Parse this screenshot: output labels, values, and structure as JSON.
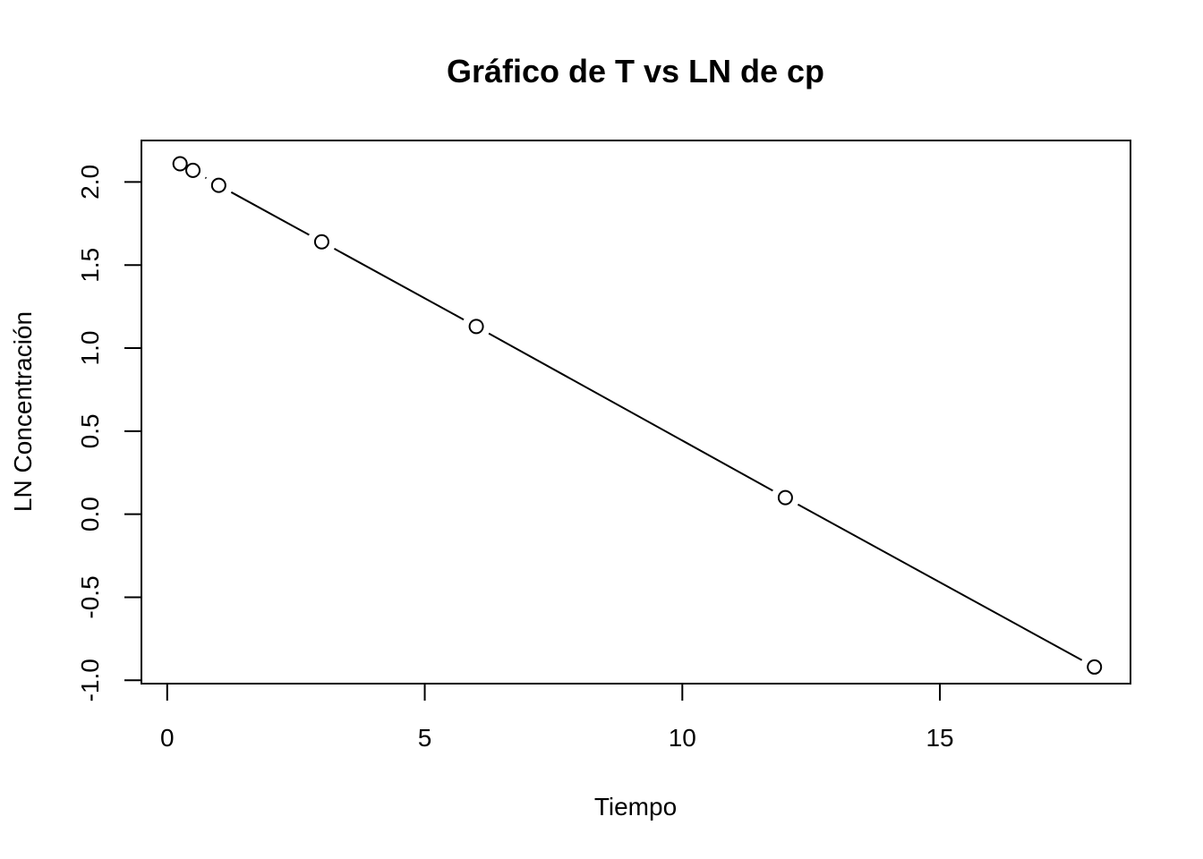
{
  "chart_data": {
    "type": "line",
    "title": "Gráfico de T vs LN de cp",
    "xlabel": "Tiempo",
    "ylabel": "LN Concentración",
    "xlim": [
      -0.5,
      18.7
    ],
    "ylim": [
      -1.02,
      2.25
    ],
    "xticks": [
      0,
      5,
      10,
      15
    ],
    "xtick_labels": [
      "0",
      "5",
      "10",
      "15"
    ],
    "yticks": [
      -1.0,
      -0.5,
      0.0,
      0.5,
      1.0,
      1.5,
      2.0
    ],
    "ytick_labels": [
      "-1.0",
      "-0.5",
      "0.0",
      "0.5",
      "1.0",
      "1.5",
      "2.0"
    ],
    "grid": false,
    "marker": "open-circle",
    "line_color": "#000000",
    "series": [
      {
        "x": [
          0.25,
          0.5,
          1,
          3,
          6,
          12,
          18
        ],
        "y": [
          2.11,
          2.07,
          1.98,
          1.64,
          1.13,
          0.1,
          -0.92
        ]
      }
    ]
  }
}
